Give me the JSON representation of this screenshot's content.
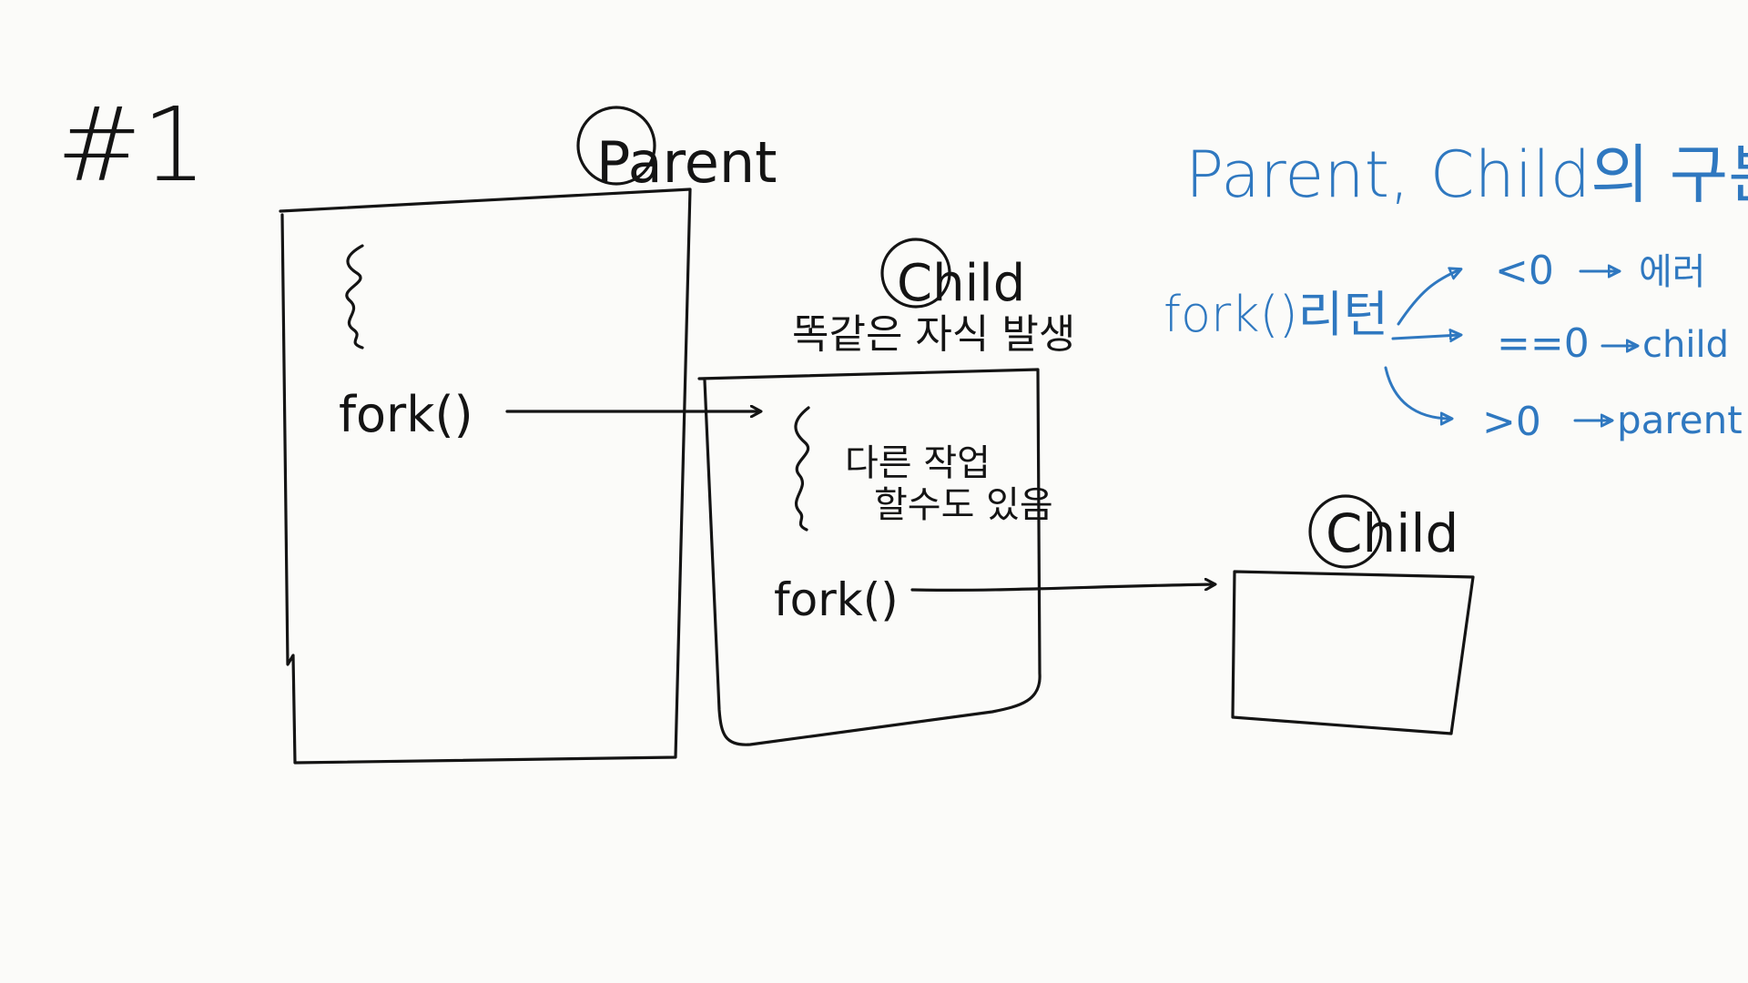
{
  "sketch": {
    "label_number": "#1",
    "parent_title": "Parent",
    "child1_title": "Child",
    "child1_caption": "똑같은 자식 발생",
    "child2_title": "Child",
    "parent_fork": "fork()",
    "child1_fork": "fork()",
    "child1_note_line1": "다른 작업",
    "child1_note_line2": "할수도 있음"
  },
  "legend": {
    "heading": "Parent, Child의 구분",
    "fork_return": "fork()리턴",
    "cases": [
      {
        "condition": "<0",
        "result": "에러"
      },
      {
        "condition": "==0",
        "result": "child"
      },
      {
        "condition": ">0",
        "result": "parent"
      }
    ]
  },
  "colors": {
    "ink": "#141414",
    "blue": "#2f78c0",
    "paper": "#fbfbf9"
  }
}
